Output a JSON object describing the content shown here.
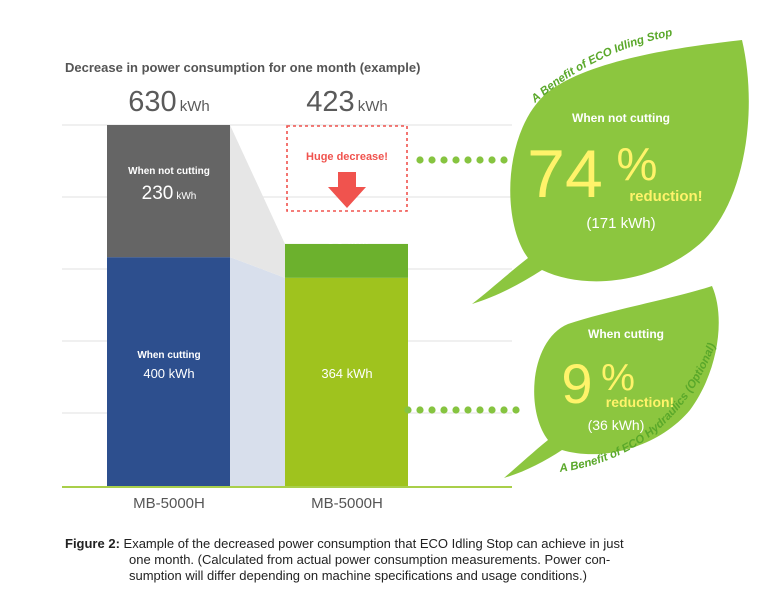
{
  "chart_data": {
    "type": "bar",
    "title": "Decrease in power consumption for one month (example)",
    "categories": [
      "MB-5000H",
      "MB-5000H"
    ],
    "unit": "kWh",
    "ylim": [
      0,
      630
    ],
    "series": [
      {
        "name": "When cutting",
        "values": [
          400,
          364
        ]
      },
      {
        "name": "When not cutting",
        "values": [
          230,
          59
        ]
      }
    ],
    "totals": [
      630,
      423
    ],
    "segment_labels": {
      "bar1_top_title": "When not cutting",
      "bar1_top_value": "230",
      "bar1_bottom_title": "When cutting",
      "bar1_bottom_value": "400 kWh",
      "bar2_top_value": "59",
      "bar2_bottom_value": "364 kWh"
    },
    "annotation": "Huge decrease!",
    "colors": {
      "bar1_top": "#656565",
      "bar1_bottom": "#2d4f8e",
      "bar2_top": "#6cb12d",
      "bar2_bottom": "#9fc31e",
      "connector": "#d8dfec",
      "leaf": "#8cc63f",
      "leaf_dark": "#5aa82a",
      "arrow": "#f0534e",
      "highlight_text": "#fff36a"
    }
  },
  "leaf_top": {
    "benefit": "A Benefit of ECO Idling Stop",
    "heading": "When not cutting",
    "percent": "74",
    "percent_sign": "%",
    "reduction": "reduction!",
    "kwh": "(171 kWh)"
  },
  "leaf_bottom": {
    "benefit": "A Benefit of ECO Hydraulics (Optional)",
    "heading": "When cutting",
    "percent": "9",
    "percent_sign": "%",
    "reduction": "reduction!",
    "kwh": "(36 kWh)"
  },
  "caption": {
    "label": "Figure 2:",
    "line1": "Example of the decreased power consumption that ECO Idling Stop can achieve in just",
    "line2": "one month. (Calculated from actual power consumption measurements. Power con-",
    "line3": "sumption will differ depending on machine specifications and usage conditions.)"
  }
}
